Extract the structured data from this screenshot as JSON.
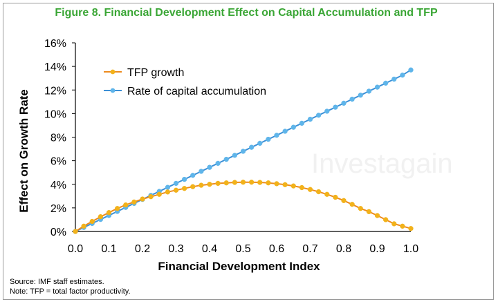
{
  "title": "Figure 8. Financial Development Effect on Capital Accumulation and TFP",
  "source": "Source: IMF staff estimates.",
  "note": "Note: TFP = total factor productivity.",
  "watermark": "Investagain",
  "colors": {
    "title": "#3aa635",
    "tfp_line": "#ed8a1c",
    "tfp_marker": "#f2b21a",
    "cap_line": "#3b8fd6",
    "cap_marker": "#5fb5ea"
  },
  "chart_data": {
    "type": "line",
    "xlabel": "Financial Development Index",
    "ylabel": "Effect on Growth Rate",
    "xlim": [
      0,
      1
    ],
    "ylim": [
      0,
      16
    ],
    "xticks": [
      "0.0",
      "0.1",
      "0.2",
      "0.3",
      "0.4",
      "0.5",
      "0.6",
      "0.7",
      "0.8",
      "0.9",
      "1.0"
    ],
    "yticks": [
      "0%",
      "2%",
      "4%",
      "6%",
      "8%",
      "10%",
      "12%",
      "14%",
      "16%"
    ],
    "gridlines": false,
    "legend_position": "top-left",
    "x": [
      0.0,
      0.025,
      0.05,
      0.075,
      0.1,
      0.125,
      0.15,
      0.175,
      0.2,
      0.225,
      0.25,
      0.275,
      0.3,
      0.325,
      0.35,
      0.375,
      0.4,
      0.425,
      0.45,
      0.475,
      0.5,
      0.525,
      0.55,
      0.575,
      0.6,
      0.625,
      0.65,
      0.675,
      0.7,
      0.725,
      0.75,
      0.775,
      0.8,
      0.825,
      0.85,
      0.875,
      0.9,
      0.925,
      0.95,
      0.975,
      1.0
    ],
    "series": [
      {
        "name": "TFP growth",
        "values": [
          0.0,
          0.45,
          0.85,
          1.25,
          1.6,
          1.95,
          2.25,
          2.5,
          2.75,
          2.95,
          3.15,
          3.35,
          3.5,
          3.65,
          3.8,
          3.92,
          4.0,
          4.08,
          4.12,
          4.16,
          4.18,
          4.18,
          4.16,
          4.12,
          4.05,
          3.97,
          3.86,
          3.72,
          3.56,
          3.37,
          3.15,
          2.9,
          2.62,
          2.3,
          1.95,
          1.68,
          1.35,
          1.0,
          0.65,
          0.45,
          0.25
        ]
      },
      {
        "name": "Rate of capital accumulation",
        "values": [
          0.0,
          0.34,
          0.68,
          1.02,
          1.36,
          1.7,
          2.04,
          2.38,
          2.72,
          3.06,
          3.4,
          3.74,
          4.08,
          4.42,
          4.76,
          5.1,
          5.44,
          5.78,
          6.12,
          6.46,
          6.8,
          7.14,
          7.48,
          7.82,
          8.16,
          8.5,
          8.84,
          9.18,
          9.52,
          9.86,
          10.2,
          10.54,
          10.88,
          11.22,
          11.56,
          11.9,
          12.24,
          12.58,
          12.92,
          13.26,
          13.7
        ]
      }
    ]
  }
}
